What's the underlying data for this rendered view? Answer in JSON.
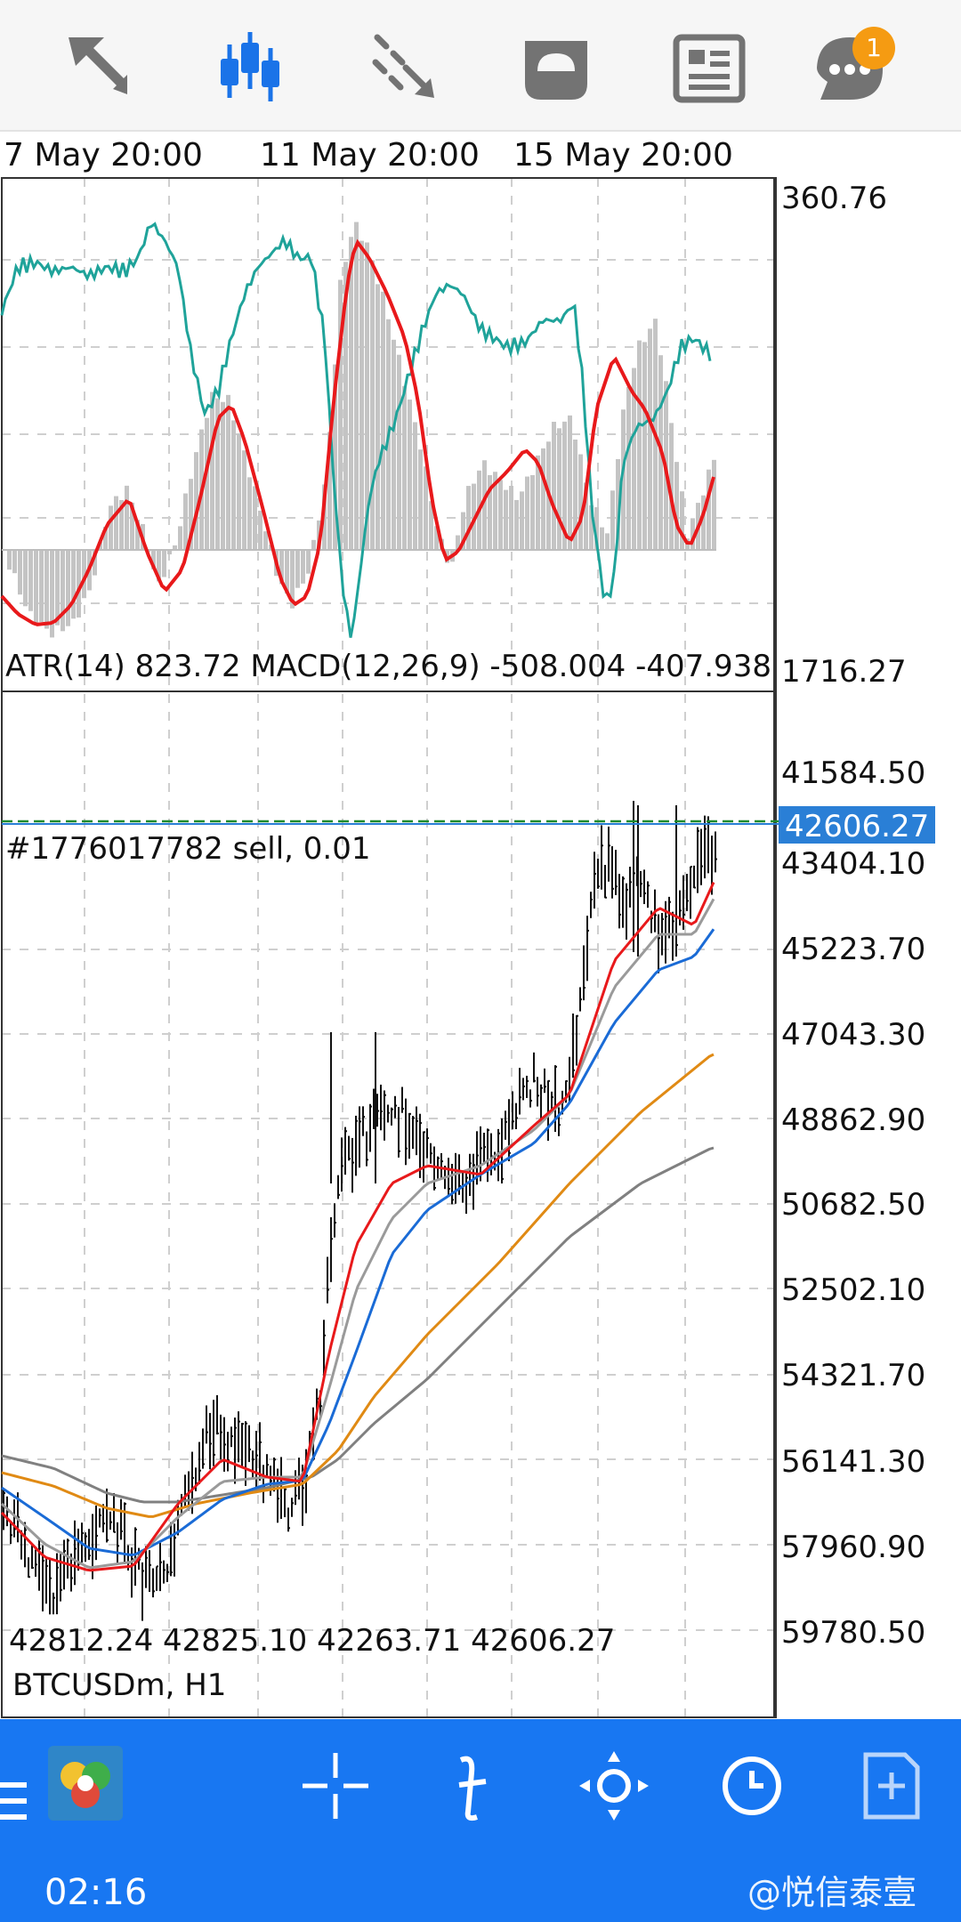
{
  "toolbar": {
    "items": [
      {
        "icon": "crosshair-cursor-icon"
      },
      {
        "icon": "candlestick-chart-type-icon",
        "active": true
      },
      {
        "icon": "objects-tools-icon"
      },
      {
        "icon": "trade-icon"
      },
      {
        "icon": "news-icon"
      },
      {
        "icon": "chat-icon",
        "badge": "1"
      }
    ]
  },
  "time_labels": [
    "7 May 20:00",
    "11 May 20:00",
    "15 May 20:00"
  ],
  "indicator_window": {
    "label": "ATR(14) 823.72 MACD(12,26,9) -508.004 -407.938",
    "scale_top": "360.76",
    "scale_bottom": "1716.27"
  },
  "main_window": {
    "symbol": "BTCUSDm, H1",
    "ohlc": "42812.24 42825.10 42263.71 42606.27",
    "order_line": "#1776017782 sell, 0.01",
    "current_price": "42606.27",
    "price_labels": [
      "41584.50",
      "43404.10",
      "45223.70",
      "47043.30",
      "48862.90",
      "50682.50",
      "52502.10",
      "54321.70",
      "56141.30",
      "57960.90",
      "59780.50"
    ]
  },
  "bottombar": {
    "time": "02:16",
    "watermark": "@悦信泰壹",
    "tools": [
      "menu-icon",
      "app-logo-icon",
      "crosshair-icon",
      "function-icon",
      "move-chart-icon",
      "period-icon",
      "new-order-icon"
    ]
  }
}
